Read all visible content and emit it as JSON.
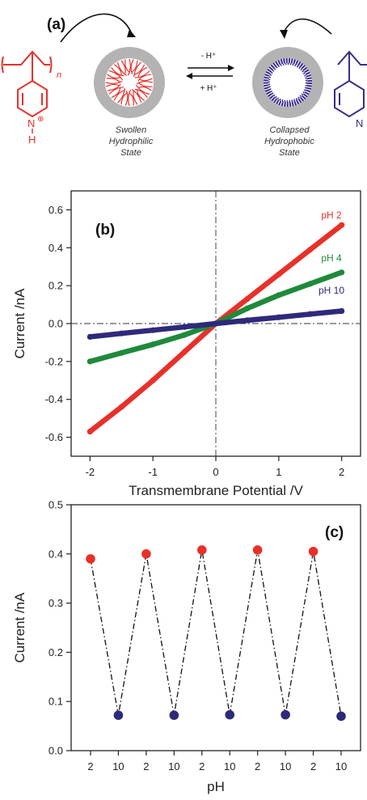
{
  "panel_a": {
    "label": "(a)",
    "subscript_n": "n",
    "left_state": [
      "Swollen",
      "Hydrophilic",
      "State"
    ],
    "right_state": [
      "Collapsed",
      "Hydrophobic",
      "State"
    ],
    "arrow_top": "- H⁺",
    "arrow_bottom": "+ H⁺",
    "pyridinium_n": "N",
    "pyridinium_charge": "⊕",
    "pyridinium_h": "H",
    "pyridine_n": "N",
    "colors": {
      "protonated": "#e8302a",
      "neutral": "#3b2a8c",
      "membrane": "#b3b3b3"
    }
  },
  "chart_data": [
    {
      "type": "line",
      "panel_label": "(b)",
      "xlabel": "Transmembrane Potential /V",
      "ylabel": "Current /nA",
      "xlim": [
        -2.3,
        2.3
      ],
      "ylim": [
        -0.7,
        0.7
      ],
      "xticks": [
        -2,
        -1,
        0,
        1,
        2
      ],
      "yticks": [
        -0.6,
        -0.4,
        -0.2,
        0.0,
        0.2,
        0.4,
        0.6
      ],
      "ytick_labels": [
        "-0.6",
        "-0.4",
        "-0.2",
        "0.0",
        "0.2",
        "0.4",
        "0.6"
      ],
      "grid": false,
      "reference_lines": {
        "x": 0,
        "y": 0
      },
      "series": [
        {
          "name": "pH 2",
          "color": "#e8302a",
          "x": [
            -2,
            -1.5,
            -1,
            -0.5,
            0,
            0.5,
            1,
            1.5,
            2
          ],
          "y": [
            -0.57,
            -0.44,
            -0.3,
            -0.15,
            0.0,
            0.13,
            0.26,
            0.39,
            0.52
          ]
        },
        {
          "name": "pH 4",
          "color": "#1f8a3a",
          "x": [
            -2,
            -1.5,
            -1,
            -0.5,
            0,
            0.5,
            1,
            1.5,
            2
          ],
          "y": [
            -0.2,
            -0.155,
            -0.11,
            -0.06,
            0.0,
            0.08,
            0.15,
            0.21,
            0.27
          ]
        },
        {
          "name": "pH 10",
          "color": "#2e2a7a",
          "x": [
            -2,
            -1.5,
            -1,
            -0.5,
            0,
            0.5,
            1,
            1.5,
            2
          ],
          "y": [
            -0.07,
            -0.052,
            -0.035,
            -0.018,
            0.0,
            0.017,
            0.033,
            0.05,
            0.066
          ]
        }
      ]
    },
    {
      "type": "scatter",
      "panel_label": "(c)",
      "xlabel": "pH",
      "ylabel": "Current /nA",
      "categories": [
        "2",
        "10",
        "2",
        "10",
        "2",
        "10",
        "2",
        "10",
        "2",
        "10"
      ],
      "ylim": [
        0.0,
        0.5
      ],
      "yticks": [
        0.0,
        0.1,
        0.2,
        0.3,
        0.4,
        0.5
      ],
      "ytick_labels": [
        "0.0",
        "0.1",
        "0.2",
        "0.3",
        "0.4",
        "0.5"
      ],
      "grid": false,
      "connect_line": "dash-dot",
      "values": [
        0.39,
        0.072,
        0.4,
        0.072,
        0.408,
        0.073,
        0.408,
        0.073,
        0.405,
        0.07
      ],
      "point_colors": [
        "#e8302a",
        "#2e2a7a",
        "#e8302a",
        "#2e2a7a",
        "#e8302a",
        "#2e2a7a",
        "#e8302a",
        "#2e2a7a",
        "#e8302a",
        "#2e2a7a"
      ]
    }
  ]
}
